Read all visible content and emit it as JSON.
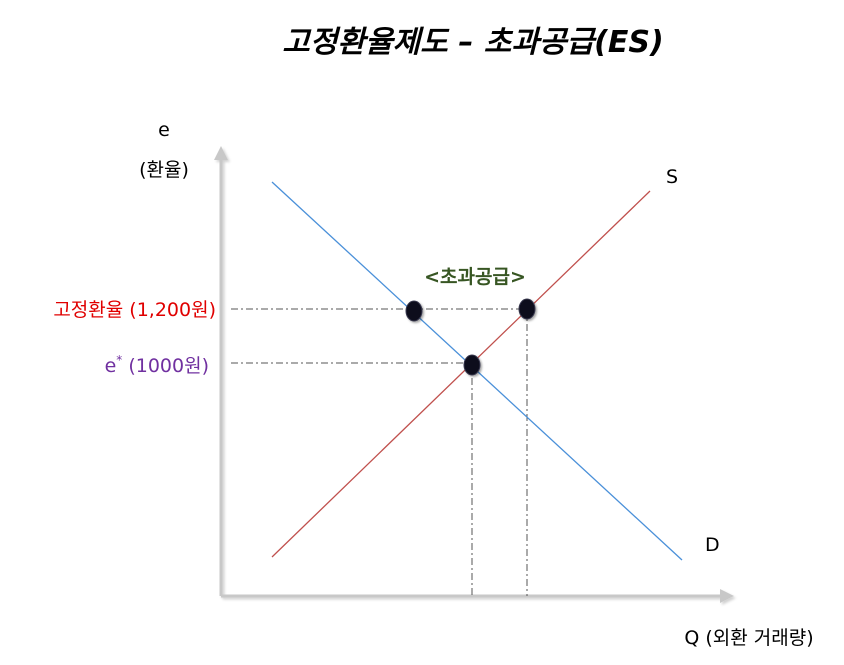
{
  "title": "고정환율제도 – 초과공급(ES)",
  "axes": {
    "y_label_top": "e",
    "y_label_bottom": "(환율)",
    "x_label": "Q (외환 거래량)"
  },
  "curves": {
    "supply_label": "S",
    "demand_label": "D"
  },
  "levels": {
    "fixed_rate_label": "고정환율 (1,200원)",
    "equilibrium_base": "e",
    "equilibrium_sup": "*",
    "equilibrium_value": " (1000원)"
  },
  "annotation": "<초과공급>",
  "colors": {
    "supply": "#c0504d",
    "demand": "#4a90d9",
    "fixed_rate_text": "#e00000",
    "equilibrium_text": "#7030a0",
    "annotation_text": "#375623",
    "axis": "#c8c8c8",
    "guide": "#555555"
  }
}
